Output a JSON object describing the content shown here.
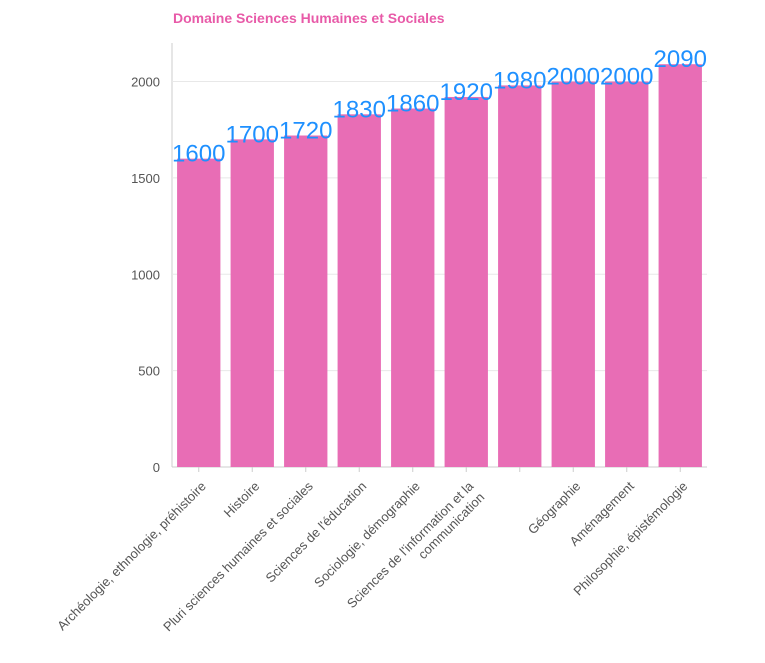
{
  "chart_data": {
    "type": "bar",
    "title": "Domaine Sciences Humaines et Sociales",
    "xlabel": "",
    "ylabel": "",
    "ylim": [
      0,
      2200
    ],
    "yticks": [
      0,
      500,
      1000,
      1500,
      2000
    ],
    "grid": true,
    "bar_color": "#e86db5",
    "label_color": "#1e90ff",
    "title_color": "#e85aa8",
    "categories": [
      "Archéologie, ethnologie, préhistoire",
      "Histoire",
      "Pluri sciences humaines et sociales",
      "Sciences de l'éducation",
      "Sociologie, démographie",
      "Sciences de l'information et la communication",
      "",
      "Géographie",
      "Aménagement",
      "Philosophie, épistémologie"
    ],
    "values": [
      1600,
      1700,
      1720,
      1830,
      1860,
      1920,
      1980,
      2000,
      2000,
      2090
    ]
  }
}
